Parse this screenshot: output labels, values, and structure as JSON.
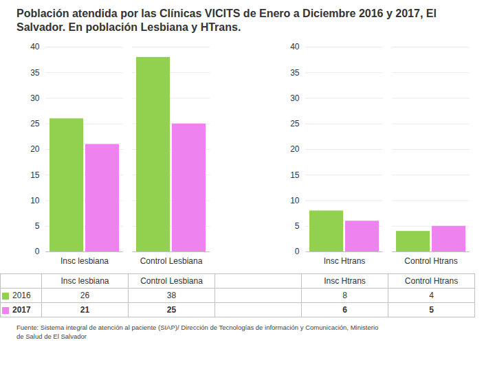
{
  "chart_data": {
    "type": "bar",
    "title": "Población atendida por las Clínicas VICITS de Enero a Diciembre 2016 y 2017, El Salvador. En población Lesbiana y HTrans.",
    "caption": "Fuente: Sistema integral de atención al paciente (SIAP)/ Dirección de Tecnologías de información y Comunicación, Ministerio\nde Salud de El Salvador",
    "categories": [
      "Insc lesbiana",
      "Control Lesbiana",
      null,
      "Insc Htrans",
      "Control Htrans"
    ],
    "series": [
      {
        "name": "2016",
        "color": "#92D050",
        "values": [
          26,
          38,
          null,
          8,
          4
        ]
      },
      {
        "name": "2017",
        "color": "#EE82EE",
        "values": [
          21,
          25,
          null,
          6,
          5
        ]
      }
    ],
    "ylim": [
      0,
      40
    ],
    "yticks": [
      0,
      5,
      10,
      15,
      20,
      25,
      30,
      35,
      40
    ],
    "grid": true
  }
}
